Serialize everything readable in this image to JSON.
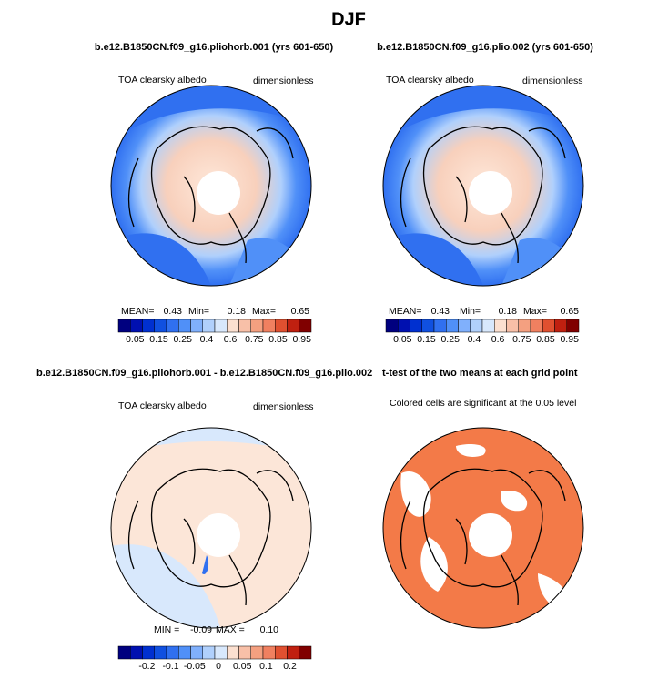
{
  "title": "DJF",
  "panels": [
    {
      "title": "b.e12.B1850CN.f09_g16.pliohorb.001 (yrs 601-650)",
      "left_label": "TOA clearsky albedo",
      "right_label": "dimensionless",
      "stats": {
        "mean_label": "MEAN=",
        "mean": 0.43,
        "min_label": "Min=",
        "min": 0.18,
        "max_label": "Max=",
        "max": 0.65
      },
      "colorbar": {
        "colors": [
          "#00007f",
          "#0010b0",
          "#0030d0",
          "#1050e0",
          "#3070f0",
          "#5090f8",
          "#80b0fc",
          "#b0d0fc",
          "#d8e8fc",
          "#fce0d0",
          "#f8c0a8",
          "#f4a080",
          "#f08060",
          "#e05030",
          "#c02010",
          "#800000"
        ],
        "labels": [
          0.05,
          0.15,
          0.25,
          0.4,
          0.6,
          0.75,
          0.85,
          0.95
        ]
      }
    },
    {
      "title": "b.e12.B1850CN.f09_g16.plio.002 (yrs 601-650)",
      "left_label": "TOA clearsky albedo",
      "right_label": "dimensionless",
      "stats": {
        "mean_label": "MEAN=",
        "mean": 0.43,
        "min_label": "Min=",
        "min": 0.18,
        "max_label": "Max=",
        "max": 0.65
      },
      "colorbar": {
        "colors": [
          "#00007f",
          "#0010b0",
          "#0030d0",
          "#1050e0",
          "#3070f0",
          "#5090f8",
          "#80b0fc",
          "#b0d0fc",
          "#d8e8fc",
          "#fce0d0",
          "#f8c0a8",
          "#f4a080",
          "#f08060",
          "#e05030",
          "#c02010",
          "#800000"
        ],
        "labels": [
          0.05,
          0.15,
          0.25,
          0.4,
          0.6,
          0.75,
          0.85,
          0.95
        ]
      }
    },
    {
      "title": "b.e12.B1850CN.f09_g16.pliohorb.001 - b.e12.B1850CN.f09_g16.plio.002",
      "left_label": "TOA clearsky albedo",
      "right_label": "dimensionless",
      "stats": {
        "min_label": "MIN =",
        "min": -0.09,
        "max_label": "MAX =",
        "max": "0.10"
      },
      "colorbar": {
        "colors": [
          "#00007f",
          "#0010b0",
          "#0030d0",
          "#1050e0",
          "#3070f0",
          "#5090f8",
          "#80b0fc",
          "#b0d0fc",
          "#d8e8fc",
          "#fce0d0",
          "#f8c0a8",
          "#f4a080",
          "#f08060",
          "#e05030",
          "#c02010",
          "#800000"
        ],
        "labels": [
          -0.2,
          -0.1,
          -0.05,
          0,
          0.05,
          0.1,
          0.2
        ]
      }
    },
    {
      "title": "t-test of the two means at each grid point",
      "left_label": "Colored cells are significant at the 0.05 level"
    }
  ]
}
